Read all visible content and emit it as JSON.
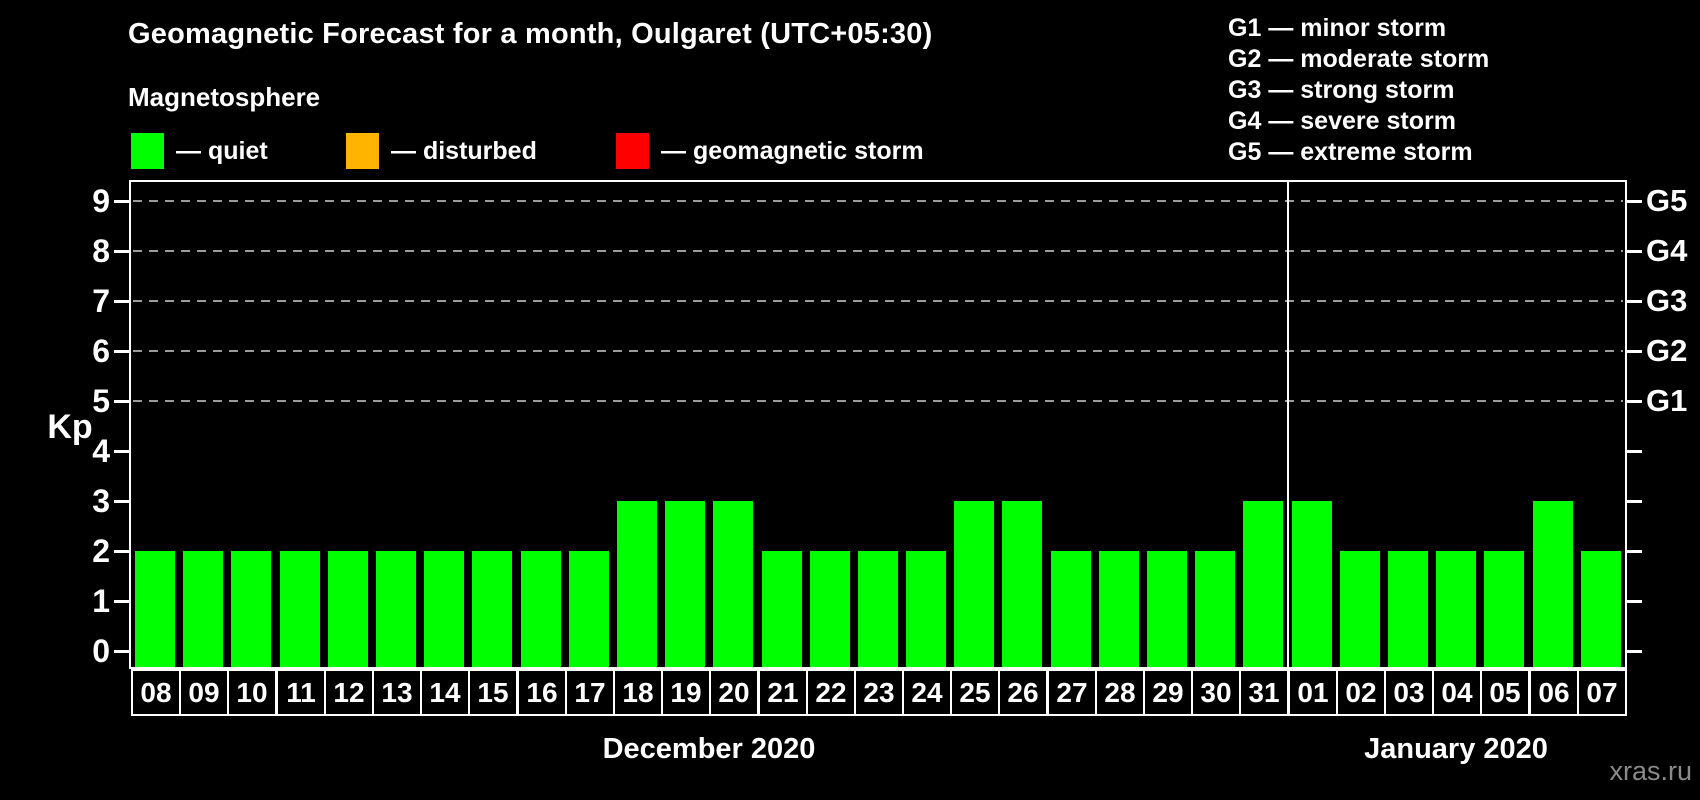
{
  "title": "Geomagnetic Forecast for a month, Oulgaret (UTC+05:30)",
  "watermark": "xras.ru",
  "magnetosphere_legend": {
    "heading": "Magnetosphere",
    "dash": "—",
    "items": [
      {
        "label": "quiet",
        "color": "#00ff00"
      },
      {
        "label": "disturbed",
        "color": "#ffb400"
      },
      {
        "label": "geomagnetic storm",
        "color": "#ff0000"
      }
    ]
  },
  "g_scale_legend": {
    "dash": "—",
    "items": [
      {
        "code": "G1",
        "desc": "minor storm"
      },
      {
        "code": "G2",
        "desc": "moderate storm"
      },
      {
        "code": "G3",
        "desc": "strong storm"
      },
      {
        "code": "G4",
        "desc": "severe storm"
      },
      {
        "code": "G5",
        "desc": "extreme storm"
      }
    ]
  },
  "chart_data": {
    "type": "bar",
    "title": "Geomagnetic Forecast for a month, Oulgaret (UTC+05:30)",
    "xlabel": "",
    "ylabel": "Kp",
    "ylim": [
      0,
      9
    ],
    "yticks": [
      0,
      1,
      2,
      3,
      4,
      5,
      6,
      7,
      8,
      9
    ],
    "gridline_kp_levels": [
      5,
      6,
      7,
      8,
      9
    ],
    "grid": "dashed horizontal at Kp 5-9 only",
    "right_axis_labels": [
      {
        "label": "G1",
        "kp": 5
      },
      {
        "label": "G2",
        "kp": 6
      },
      {
        "label": "G3",
        "kp": 7
      },
      {
        "label": "G4",
        "kp": 8
      },
      {
        "label": "G5",
        "kp": 9
      }
    ],
    "series_name": "Kp index forecast (quiet)",
    "series_color": "#00ff00",
    "categories": [
      "08",
      "09",
      "10",
      "11",
      "12",
      "13",
      "14",
      "15",
      "16",
      "17",
      "18",
      "19",
      "20",
      "21",
      "22",
      "23",
      "24",
      "25",
      "26",
      "27",
      "28",
      "29",
      "30",
      "31",
      "01",
      "02",
      "03",
      "04",
      "05",
      "06",
      "07"
    ],
    "values": [
      2,
      2,
      2,
      2,
      2,
      2,
      2,
      2,
      2,
      2,
      3,
      3,
      3,
      2,
      2,
      2,
      2,
      3,
      3,
      2,
      2,
      2,
      2,
      3,
      3,
      2,
      2,
      2,
      2,
      3,
      2
    ],
    "months": [
      {
        "label": "December 2020",
        "day_count": 24
      },
      {
        "label": "January 2020",
        "day_count": 7
      }
    ]
  }
}
